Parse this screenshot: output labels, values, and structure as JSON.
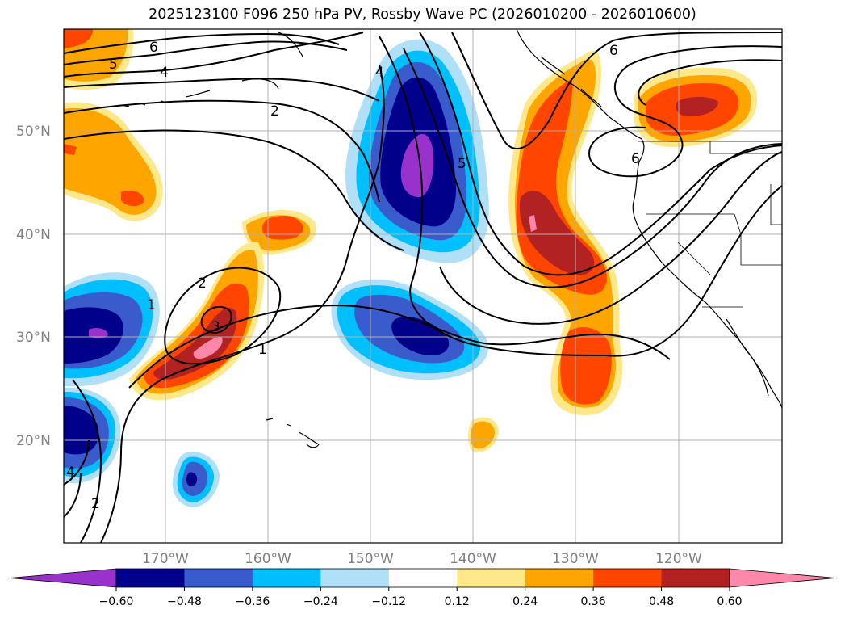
{
  "title": "2025123100 F096 250 hPa PV, Rossby Wave PC (2026010200 - 2026010600)",
  "lat_labels": [
    "50°N",
    "40°N",
    "30°N",
    "20°N"
  ],
  "lon_labels": [
    "170°W",
    "160°W",
    "150°W",
    "140°W",
    "130°W",
    "120°W"
  ],
  "colorbar": {
    "ticks": [
      "−0.60",
      "−0.48",
      "−0.36",
      "−0.24",
      "−0.12",
      "0.12",
      "0.24",
      "0.36",
      "0.48",
      "0.60"
    ],
    "colors": [
      "#9932cc",
      "#00008b",
      "#3a5bcc",
      "#00bfff",
      "#b0e0f8",
      "#ffffff",
      "#ffe88a",
      "#ffa500",
      "#ff4500",
      "#b22222",
      "#ff88aa"
    ]
  },
  "contour_labels": [
    "6",
    "5",
    "4",
    "2",
    "4",
    "5",
    "6",
    "6",
    "2",
    "1",
    "3",
    "1",
    "2",
    "4"
  ]
}
